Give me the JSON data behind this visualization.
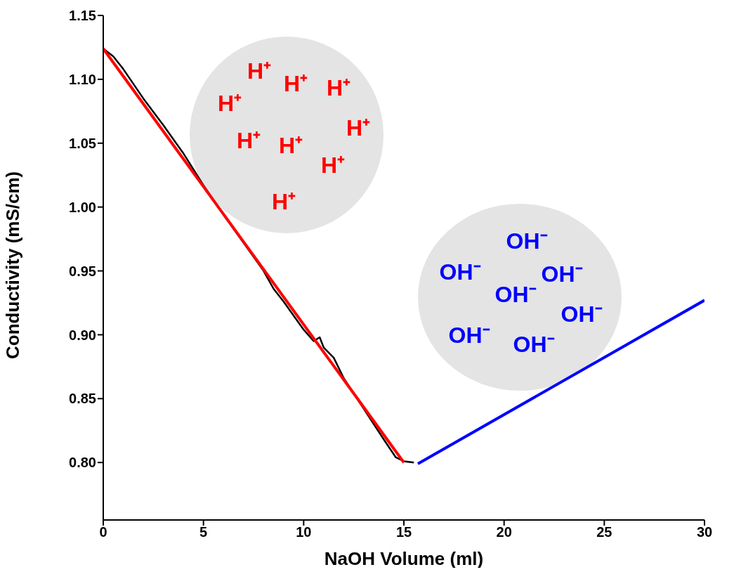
{
  "chart_data": {
    "type": "line",
    "xlabel": "NaOH Volume (ml)",
    "ylabel": "Conductivity (mS/cm)",
    "xlim": [
      0,
      30
    ],
    "xticks": [
      0,
      5,
      10,
      15,
      20,
      25,
      30
    ],
    "ylim": [
      0.755,
      1.15
    ],
    "yticks": [
      {
        "value": 0.8,
        "label": "0.80"
      },
      {
        "value": 0.85,
        "label": "0.85"
      },
      {
        "value": 0.9,
        "label": "0.90"
      },
      {
        "value": 0.95,
        "label": "0.95"
      },
      {
        "value": 1.0,
        "label": "1.00"
      },
      {
        "value": 1.05,
        "label": "1.05"
      },
      {
        "value": 1.1,
        "label": "1.10"
      },
      {
        "value": 1.15,
        "label": "1.15"
      }
    ],
    "grid": false,
    "legend": false,
    "marker": "none",
    "line_style": "solid",
    "series": [
      {
        "color": "#000000",
        "x": [
          0,
          0.5,
          1,
          2,
          3,
          4,
          5,
          6,
          7,
          8,
          8.5,
          9,
          10,
          10.5,
          10.8,
          11,
          11.5,
          12,
          13,
          14,
          14.6,
          15,
          15.5
        ],
        "values": [
          1.124,
          1.118,
          1.108,
          1.085,
          1.064,
          1.042,
          1.017,
          0.994,
          0.972,
          0.95,
          0.936,
          0.926,
          0.904,
          0.895,
          0.898,
          0.89,
          0.882,
          0.866,
          0.842,
          0.818,
          0.804,
          0.801,
          0.8
        ]
      },
      {
        "color": "#ff0000",
        "x": [
          0,
          15
        ],
        "values": [
          1.124,
          0.8
        ]
      },
      {
        "color": "#0000ff",
        "x": [
          15.7,
          30
        ],
        "values": [
          0.799,
          0.927
        ]
      }
    ],
    "annotations": [
      "H⁺",
      "H⁺",
      "H⁺",
      "H⁺",
      "H⁺",
      "H⁺",
      "H⁺",
      "H⁺",
      "H⁺",
      "OH⁻",
      "OH⁻",
      "OH⁻",
      "OH⁻",
      "OH⁻",
      "OH⁻",
      "OH⁻"
    ]
  }
}
